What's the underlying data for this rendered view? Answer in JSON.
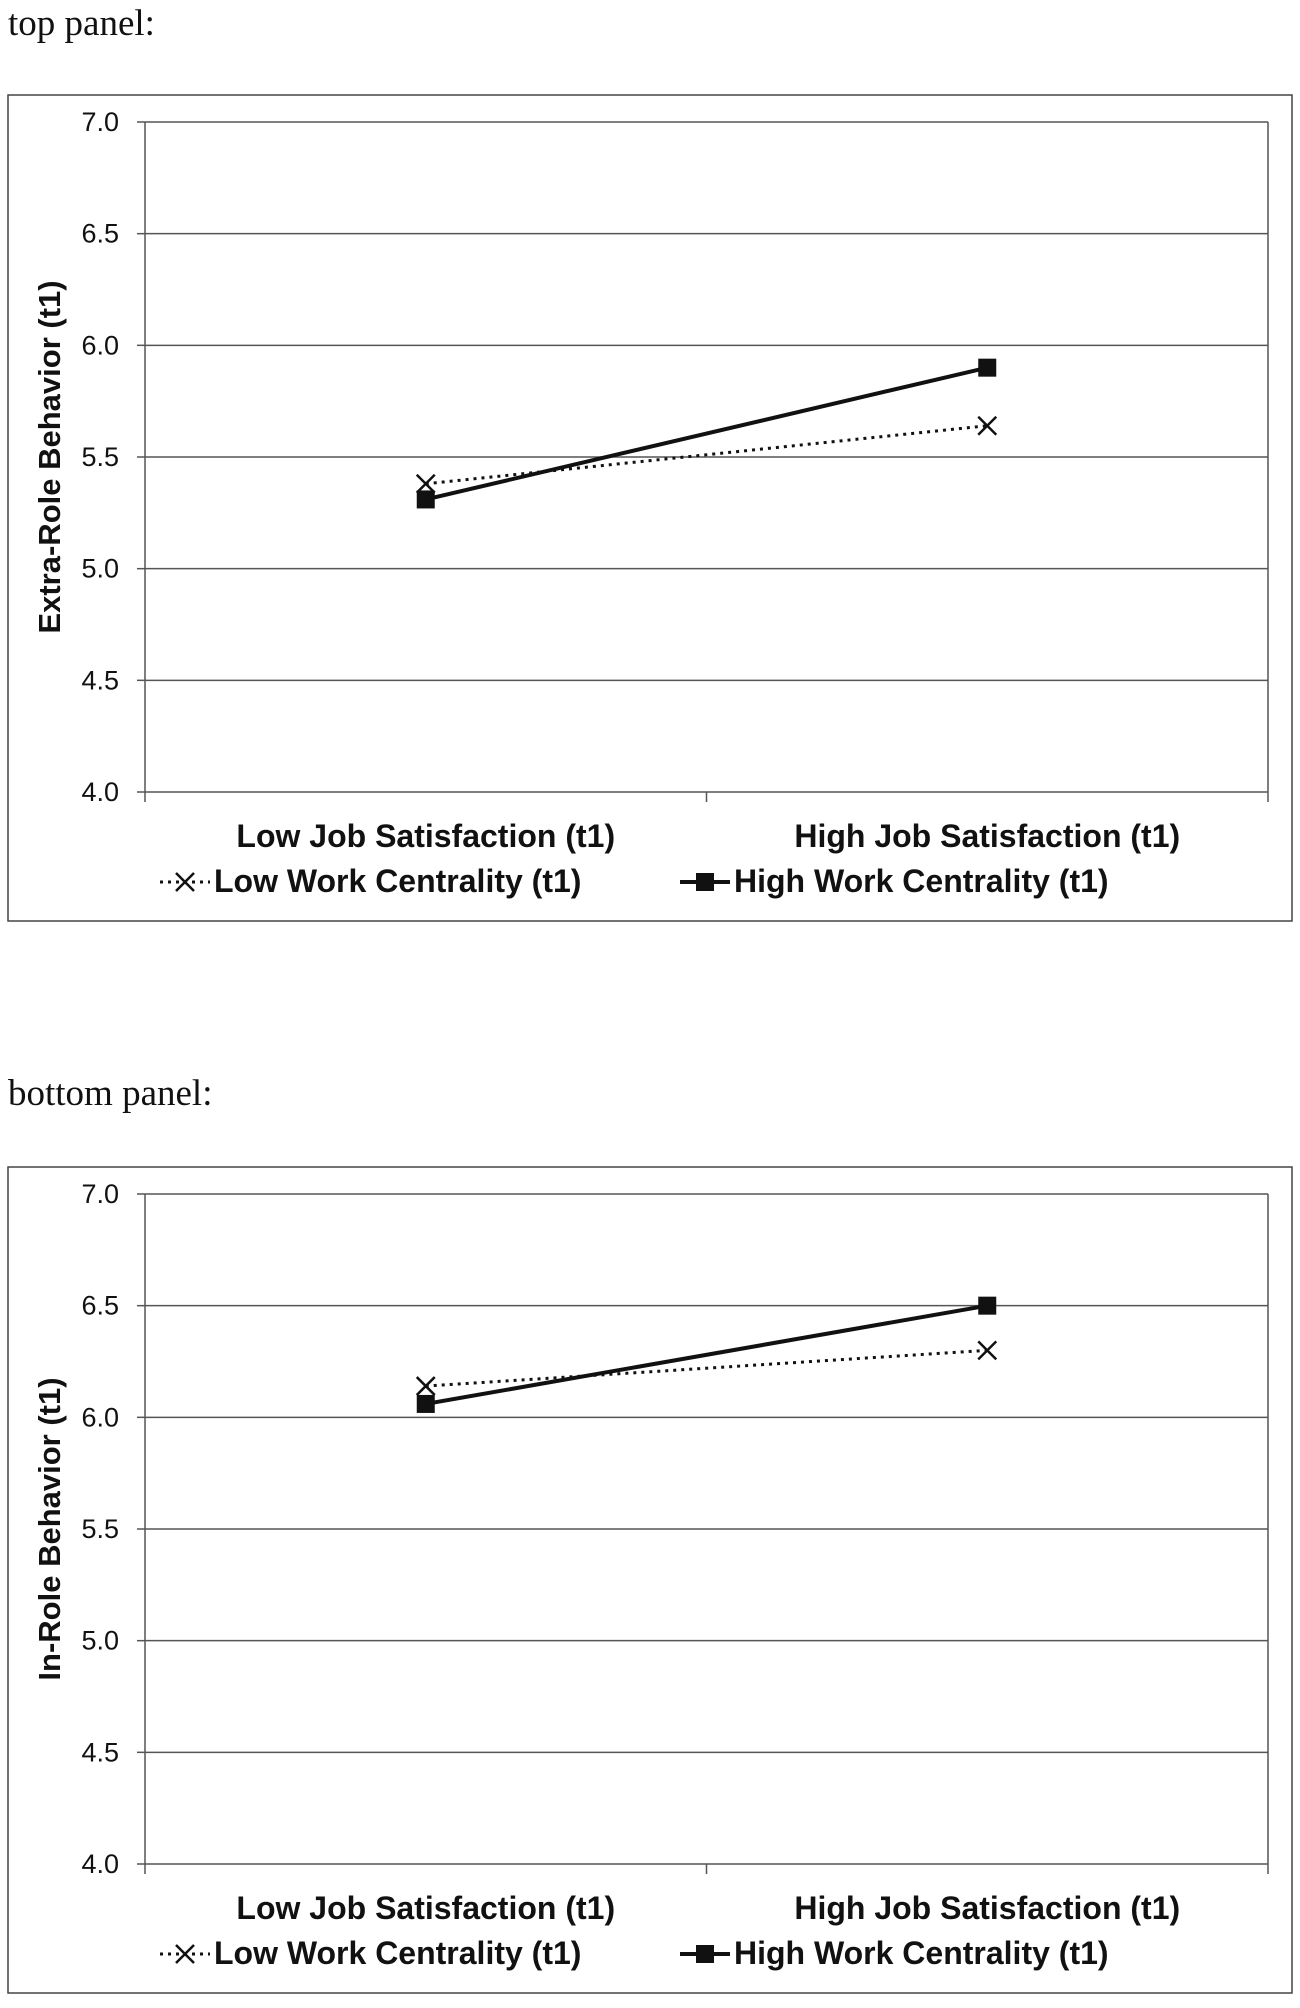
{
  "labels": {
    "top_panel": "top panel:",
    "bottom_panel": "bottom panel:"
  },
  "chart_data": [
    {
      "type": "line",
      "title": "",
      "xlabel": "",
      "ylabel": "Extra-Role Behavior (t1)",
      "ylim": [
        4.0,
        7.0
      ],
      "yticks": [
        "4.0",
        "4.5",
        "5.0",
        "5.5",
        "6.0",
        "6.5",
        "7.0"
      ],
      "grid": true,
      "categories": [
        "Low Job Satisfaction (t1)",
        "High Job Satisfaction (t1)"
      ],
      "legend_position": "bottom",
      "series": [
        {
          "name": "Low Work Centrality (t1)",
          "values": [
            5.38,
            5.64
          ],
          "style": "dotted",
          "marker": "x",
          "color": "#111111"
        },
        {
          "name": "High Work Centrality (t1)",
          "values": [
            5.31,
            5.9
          ],
          "style": "solid",
          "marker": "square",
          "color": "#111111"
        }
      ]
    },
    {
      "type": "line",
      "title": "",
      "xlabel": "",
      "ylabel": "In-Role Behavior (t1)",
      "ylim": [
        4.0,
        7.0
      ],
      "yticks": [
        "4.0",
        "4.5",
        "5.0",
        "5.5",
        "6.0",
        "6.5",
        "7.0"
      ],
      "grid": true,
      "categories": [
        "Low Job Satisfaction (t1)",
        "High Job Satisfaction (t1)"
      ],
      "legend_position": "bottom",
      "series": [
        {
          "name": "Low Work Centrality (t1)",
          "values": [
            6.14,
            6.3
          ],
          "style": "dotted",
          "marker": "x",
          "color": "#111111"
        },
        {
          "name": "High Work Centrality (t1)",
          "values": [
            6.06,
            6.5
          ],
          "style": "solid",
          "marker": "square",
          "color": "#111111"
        }
      ]
    }
  ]
}
